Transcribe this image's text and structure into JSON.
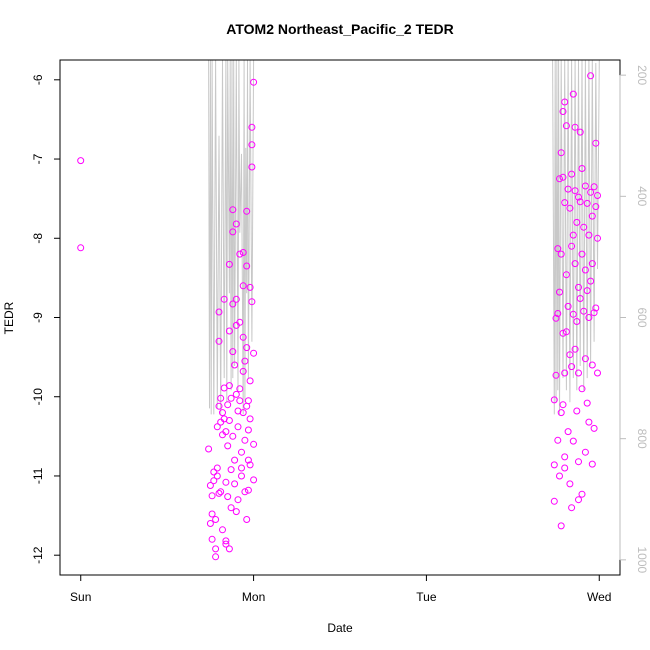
{
  "chart_data": {
    "type": "scatter",
    "title": "ATOM2 Northeast_Pacific_2 TEDR",
    "xlabel": "Date",
    "ylabel": "TEDR",
    "x_ticks": [
      {
        "value": 0,
        "label": "Sun"
      },
      {
        "value": 1,
        "label": "Mon"
      },
      {
        "value": 2,
        "label": "Tue"
      },
      {
        "value": 3,
        "label": "Wed"
      }
    ],
    "xlim": [
      -0.12,
      3.12
    ],
    "ylim": [
      -12.25,
      -5.75
    ],
    "y_ticks": [
      -12,
      -11,
      -10,
      -9,
      -8,
      -7,
      -6
    ],
    "y2_ticks": [
      200,
      400,
      600,
      800,
      1000
    ],
    "y2lim": [
      1025,
      175
    ],
    "point_color": "#ff00ff",
    "line_color": "#c8c8c8",
    "axis_color": "#000000",
    "y2_axis_color": "#bdbdbd",
    "grid": false,
    "series": [
      {
        "name": "",
        "marker": "circle",
        "points": [
          [
            0.0,
            -7.02
          ],
          [
            0.0,
            -8.12
          ],
          [
            0.74,
            -10.66
          ],
          [
            0.75,
            -11.12
          ],
          [
            0.75,
            -11.6
          ],
          [
            0.76,
            -11.8
          ],
          [
            0.76,
            -11.48
          ],
          [
            0.76,
            -11.25
          ],
          [
            0.77,
            -10.95
          ],
          [
            0.77,
            -11.06
          ],
          [
            0.78,
            -11.55
          ],
          [
            0.78,
            -12.02
          ],
          [
            0.78,
            -11.92
          ],
          [
            0.79,
            -10.38
          ],
          [
            0.79,
            -11.0
          ],
          [
            0.79,
            -10.9
          ],
          [
            0.8,
            -10.12
          ],
          [
            0.8,
            -9.3
          ],
          [
            0.8,
            -8.93
          ],
          [
            0.81,
            -10.02
          ],
          [
            0.81,
            -10.32
          ],
          [
            0.81,
            -11.2
          ],
          [
            0.82,
            -10.2
          ],
          [
            0.82,
            -10.48
          ],
          [
            0.82,
            -11.68
          ],
          [
            0.83,
            -8.77
          ],
          [
            0.83,
            -9.89
          ],
          [
            0.83,
            -10.28
          ],
          [
            0.84,
            -10.44
          ],
          [
            0.84,
            -11.08
          ],
          [
            0.84,
            -11.86
          ],
          [
            0.84,
            -11.82
          ],
          [
            0.85,
            -10.1
          ],
          [
            0.85,
            -10.62
          ],
          [
            0.85,
            -11.26
          ],
          [
            0.86,
            -8.33
          ],
          [
            0.86,
            -9.17
          ],
          [
            0.86,
            -9.86
          ],
          [
            0.86,
            -10.3
          ],
          [
            0.87,
            -10.92
          ],
          [
            0.87,
            -11.4
          ],
          [
            0.87,
            -10.02
          ],
          [
            0.88,
            -7.64
          ],
          [
            0.88,
            -8.83
          ],
          [
            0.88,
            -9.43
          ],
          [
            0.88,
            -10.5
          ],
          [
            0.89,
            -10.8
          ],
          [
            0.89,
            -11.1
          ],
          [
            0.89,
            -9.6
          ],
          [
            0.9,
            -7.82
          ],
          [
            0.9,
            -8.77
          ],
          [
            0.9,
            -9.1
          ],
          [
            0.9,
            -9.97
          ],
          [
            0.91,
            -10.38
          ],
          [
            0.91,
            -11.3
          ],
          [
            0.91,
            -10.18
          ],
          [
            0.92,
            -8.2
          ],
          [
            0.92,
            -9.06
          ],
          [
            0.92,
            -9.9
          ],
          [
            0.92,
            -10.05
          ],
          [
            0.93,
            -10.7
          ],
          [
            0.93,
            -11.0
          ],
          [
            0.93,
            -10.9
          ],
          [
            0.94,
            -8.18
          ],
          [
            0.94,
            -9.25
          ],
          [
            0.94,
            -9.68
          ],
          [
            0.94,
            -10.2
          ],
          [
            0.95,
            -10.55
          ],
          [
            0.95,
            -11.2
          ],
          [
            0.95,
            -9.55
          ],
          [
            0.96,
            -7.66
          ],
          [
            0.96,
            -8.35
          ],
          [
            0.96,
            -9.38
          ],
          [
            0.96,
            -10.12
          ],
          [
            0.97,
            -10.42
          ],
          [
            0.97,
            -10.8
          ],
          [
            0.97,
            -11.18
          ],
          [
            0.98,
            -8.62
          ],
          [
            0.98,
            -9.8
          ],
          [
            0.98,
            -10.28
          ],
          [
            0.98,
            -10.86
          ],
          [
            0.99,
            -6.6
          ],
          [
            0.99,
            -6.82
          ],
          [
            0.99,
            -7.1
          ],
          [
            0.99,
            -8.8
          ],
          [
            1.0,
            -6.03
          ],
          [
            1.0,
            -9.45
          ],
          [
            1.0,
            -10.6
          ],
          [
            1.0,
            -11.05
          ],
          [
            0.96,
            -11.55
          ],
          [
            0.9,
            -11.45
          ],
          [
            0.86,
            -11.92
          ],
          [
            0.88,
            -7.92
          ],
          [
            0.94,
            -8.6
          ],
          [
            0.8,
            -11.22
          ],
          [
            0.97,
            -10.05
          ],
          [
            2.74,
            -10.04
          ],
          [
            2.74,
            -10.86
          ],
          [
            2.74,
            -11.32
          ],
          [
            2.75,
            -9.01
          ],
          [
            2.75,
            -9.73
          ],
          [
            2.76,
            -8.13
          ],
          [
            2.76,
            -8.95
          ],
          [
            2.76,
            -10.55
          ],
          [
            2.77,
            -7.25
          ],
          [
            2.77,
            -8.68
          ],
          [
            2.77,
            -11.0
          ],
          [
            2.78,
            -6.92
          ],
          [
            2.78,
            -8.2
          ],
          [
            2.78,
            -10.2
          ],
          [
            2.78,
            -11.63
          ],
          [
            2.79,
            -6.4
          ],
          [
            2.79,
            -7.23
          ],
          [
            2.79,
            -9.2
          ],
          [
            2.79,
            -10.1
          ],
          [
            2.8,
            -6.28
          ],
          [
            2.8,
            -7.55
          ],
          [
            2.8,
            -9.7
          ],
          [
            2.8,
            -10.76
          ],
          [
            2.81,
            -6.58
          ],
          [
            2.81,
            -8.46
          ],
          [
            2.81,
            -9.18
          ],
          [
            2.82,
            -7.38
          ],
          [
            2.82,
            -8.86
          ],
          [
            2.82,
            -10.44
          ],
          [
            2.83,
            -7.62
          ],
          [
            2.83,
            -9.47
          ],
          [
            2.83,
            -11.1
          ],
          [
            2.84,
            -7.19
          ],
          [
            2.84,
            -8.1
          ],
          [
            2.84,
            -9.62
          ],
          [
            2.85,
            -6.18
          ],
          [
            2.85,
            -7.96
          ],
          [
            2.85,
            -8.96
          ],
          [
            2.85,
            -10.56
          ],
          [
            2.86,
            -6.6
          ],
          [
            2.86,
            -7.4
          ],
          [
            2.86,
            -8.32
          ],
          [
            2.86,
            -9.4
          ],
          [
            2.87,
            -7.8
          ],
          [
            2.87,
            -9.05
          ],
          [
            2.87,
            -10.18
          ],
          [
            2.88,
            -7.48
          ],
          [
            2.88,
            -8.62
          ],
          [
            2.88,
            -9.7
          ],
          [
            2.88,
            -10.82
          ],
          [
            2.89,
            -6.66
          ],
          [
            2.89,
            -7.54
          ],
          [
            2.89,
            -8.76
          ],
          [
            2.9,
            -7.12
          ],
          [
            2.9,
            -8.2
          ],
          [
            2.9,
            -9.9
          ],
          [
            2.9,
            -11.23
          ],
          [
            2.91,
            -7.86
          ],
          [
            2.91,
            -8.92
          ],
          [
            2.92,
            -7.34
          ],
          [
            2.92,
            -8.4
          ],
          [
            2.92,
            -9.52
          ],
          [
            2.93,
            -7.56
          ],
          [
            2.93,
            -8.66
          ],
          [
            2.93,
            -10.08
          ],
          [
            2.94,
            -7.96
          ],
          [
            2.94,
            -9.0
          ],
          [
            2.94,
            -10.32
          ],
          [
            2.95,
            -5.95
          ],
          [
            2.95,
            -7.42
          ],
          [
            2.95,
            -8.54
          ],
          [
            2.96,
            -7.72
          ],
          [
            2.96,
            -8.32
          ],
          [
            2.96,
            -9.6
          ],
          [
            2.97,
            -7.35
          ],
          [
            2.97,
            -8.94
          ],
          [
            2.97,
            -10.4
          ],
          [
            2.98,
            -6.8
          ],
          [
            2.98,
            -7.6
          ],
          [
            2.98,
            -8.88
          ],
          [
            2.99,
            -7.46
          ],
          [
            2.99,
            -8.0
          ],
          [
            2.99,
            -9.7
          ],
          [
            2.8,
            -10.9
          ],
          [
            2.84,
            -11.4
          ],
          [
            2.88,
            -11.3
          ],
          [
            2.92,
            -10.7
          ],
          [
            2.96,
            -10.85
          ]
        ]
      },
      {
        "name": "",
        "role": "depth",
        "axis": "right",
        "type": "line",
        "points": [
          [
            0.74,
            130
          ],
          [
            0.745,
            750
          ],
          [
            0.75,
            130
          ],
          [
            0.755,
            760
          ],
          [
            0.76,
            130
          ],
          [
            0.77,
            760
          ],
          [
            0.78,
            130
          ],
          [
            0.79,
            750
          ],
          [
            0.8,
            300
          ],
          [
            0.81,
            760
          ],
          [
            0.82,
            130
          ],
          [
            0.83,
            700
          ],
          [
            0.84,
            130
          ],
          [
            0.845,
            740
          ],
          [
            0.85,
            130
          ],
          [
            0.86,
            560
          ],
          [
            0.865,
            120
          ],
          [
            0.87,
            720
          ],
          [
            0.875,
            130
          ],
          [
            0.88,
            700
          ],
          [
            0.885,
            130
          ],
          [
            0.89,
            680
          ],
          [
            0.9,
            130
          ],
          [
            0.91,
            720
          ],
          [
            0.915,
            160
          ],
          [
            0.92,
            460
          ],
          [
            0.93,
            330
          ],
          [
            0.94,
            760
          ],
          [
            0.945,
            130
          ],
          [
            0.95,
            740
          ],
          [
            0.955,
            320
          ],
          [
            0.96,
            560
          ],
          [
            0.965,
            130
          ],
          [
            0.97,
            700
          ],
          [
            0.98,
            130
          ],
          [
            0.99,
            640
          ],
          [
            1.0,
            130
          ],
          [
            2.73,
            130
          ],
          [
            2.74,
            760
          ],
          [
            2.745,
            130
          ],
          [
            2.75,
            740
          ],
          [
            2.755,
            130
          ],
          [
            2.76,
            720
          ],
          [
            2.765,
            130
          ],
          [
            2.77,
            760
          ],
          [
            2.78,
            130
          ],
          [
            2.79,
            700
          ],
          [
            2.8,
            130
          ],
          [
            2.81,
            720
          ],
          [
            2.82,
            130
          ],
          [
            2.83,
            740
          ],
          [
            2.84,
            140
          ],
          [
            2.85,
            700
          ],
          [
            2.86,
            130
          ],
          [
            2.87,
            720
          ],
          [
            2.88,
            130
          ],
          [
            2.89,
            680
          ],
          [
            2.9,
            150
          ],
          [
            2.91,
            720
          ],
          [
            2.92,
            130
          ],
          [
            2.93,
            700
          ],
          [
            2.94,
            160
          ],
          [
            2.95,
            680
          ],
          [
            2.96,
            130
          ],
          [
            2.97,
            640
          ],
          [
            2.98,
            180
          ],
          [
            2.99,
            520
          ],
          [
            3.0,
            130
          ]
        ]
      }
    ]
  }
}
